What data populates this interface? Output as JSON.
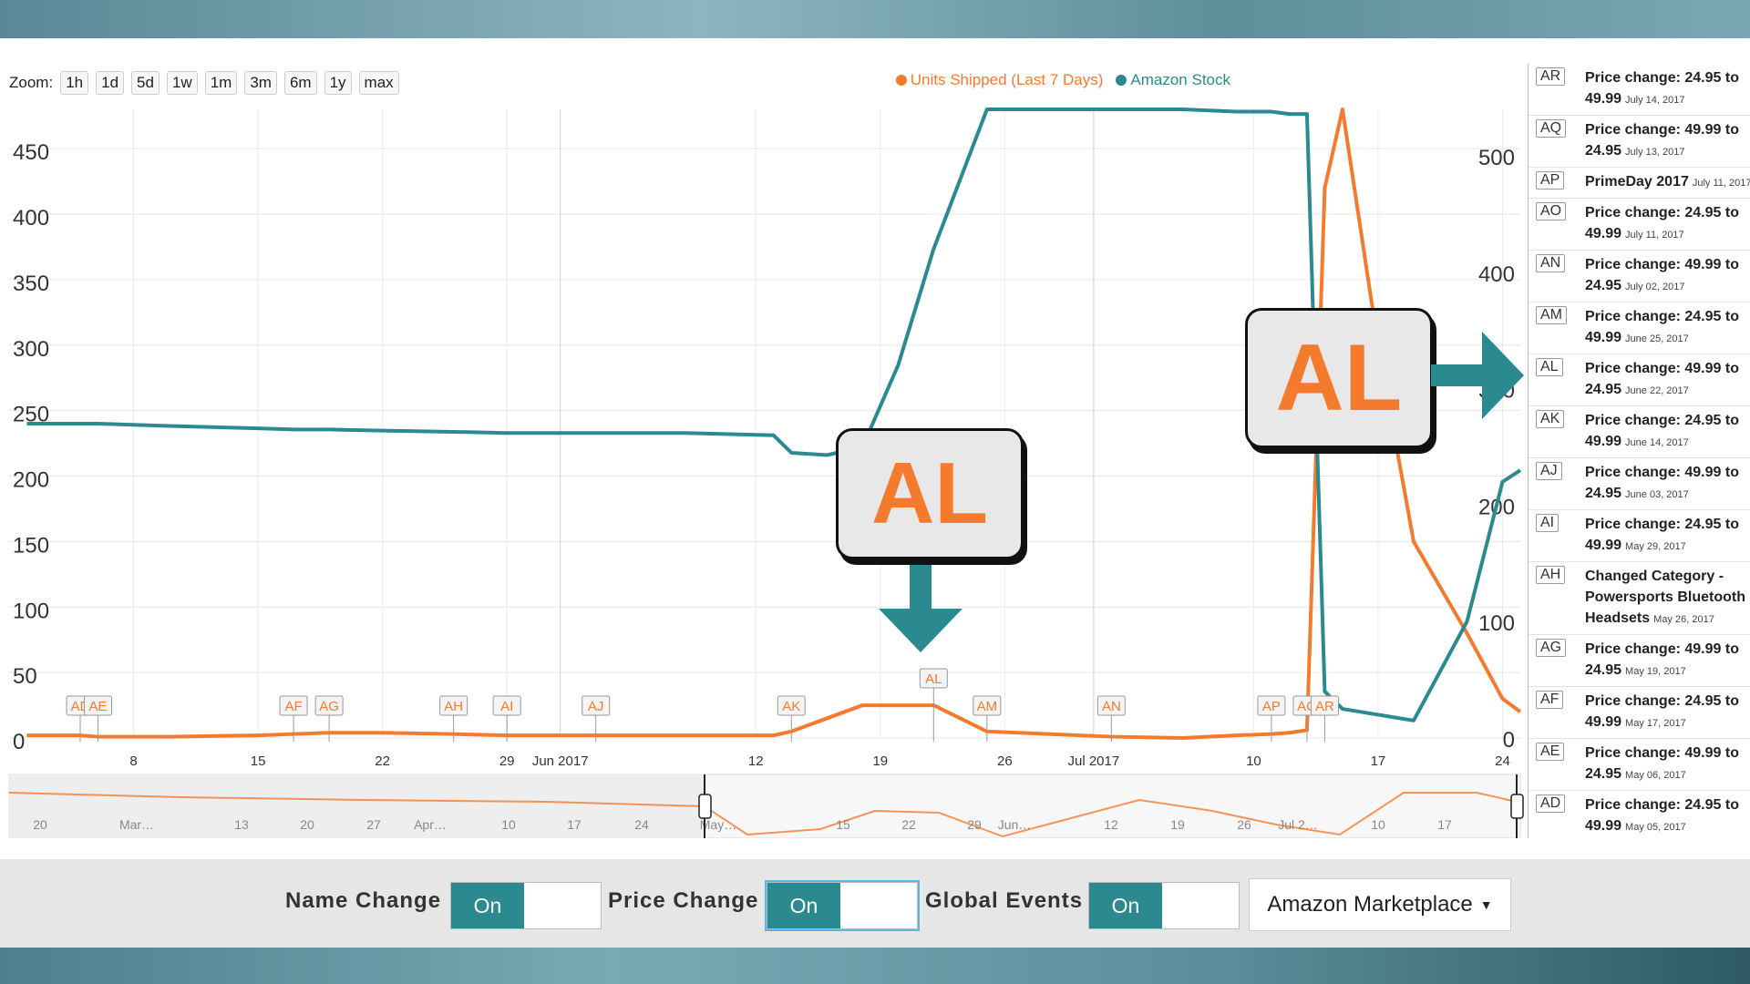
{
  "zoom": {
    "label": "Zoom:",
    "buttons": [
      "1h",
      "1d",
      "5d",
      "1w",
      "1m",
      "3m",
      "6m",
      "1y",
      "max"
    ]
  },
  "legend": [
    {
      "name": "Units Shipped (Last 7 Days)",
      "color": "#f47b2e"
    },
    {
      "name": "Amazon Stock",
      "color": "#2b8a8f"
    }
  ],
  "chart": {
    "left_axis_ticks": [
      "450",
      "400",
      "350",
      "300",
      "250",
      "200",
      "150",
      "100",
      "50",
      "0"
    ],
    "right_axis_ticks": [
      "500",
      "400",
      "300",
      "200",
      "100",
      "0"
    ],
    "x_ticks": [
      "8",
      "15",
      "22",
      "29",
      "Jun 2017",
      "12",
      "19",
      "26",
      "Jul 2017",
      "10",
      "17",
      "24"
    ],
    "markers": [
      "AD",
      "AE",
      "AF",
      "AG",
      "AH",
      "AI",
      "AJ",
      "AK",
      "AL",
      "AM",
      "AN",
      "AP",
      "AQ",
      "AR"
    ],
    "navigator_labels": [
      "20",
      "Mar…",
      "13",
      "20",
      "27",
      "Apr…",
      "10",
      "17",
      "24",
      "May…",
      "15",
      "22",
      "29",
      "Jun…",
      "12",
      "19",
      "26",
      "Jul 2…",
      "10",
      "17"
    ]
  },
  "chart_data": {
    "type": "line",
    "x": [
      "May 02",
      "May 05",
      "May 06",
      "May 10",
      "May 15",
      "May 17",
      "May 19",
      "May 22",
      "May 26",
      "May 29",
      "Jun 03",
      "Jun 08",
      "Jun 13",
      "Jun 14",
      "Jun 16",
      "Jun 18",
      "Jun 20",
      "Jun 22",
      "Jun 25",
      "Jul 02",
      "Jul 06",
      "Jul 09",
      "Jul 11",
      "Jul 12",
      "Jul 13",
      "Jul 14",
      "Jul 15",
      "Jul 17",
      "Jul 19",
      "Jul 22",
      "Jul 24",
      "Jul 25"
    ],
    "series": [
      {
        "name": "Units Shipped (Last 7 Days)",
        "axis": "left",
        "values": [
          2,
          2,
          1,
          1,
          2,
          3,
          4,
          4,
          3,
          2,
          2,
          2,
          2,
          5,
          15,
          25,
          25,
          25,
          5,
          1,
          0,
          2,
          3,
          4,
          6,
          420,
          480,
          300,
          150,
          80,
          30,
          20
        ]
      },
      {
        "name": "Amazon Stock",
        "axis": "right",
        "values": [
          270,
          270,
          270,
          268,
          266,
          265,
          265,
          264,
          263,
          262,
          262,
          262,
          260,
          245,
          243,
          250,
          320,
          420,
          540,
          540,
          540,
          538,
          538,
          536,
          536,
          40,
          25,
          20,
          15,
          100,
          220,
          230
        ]
      }
    ],
    "left_ylim": [
      0,
      480
    ],
    "right_ylim": [
      0,
      540
    ]
  },
  "callouts": [
    {
      "text": "AL"
    },
    {
      "text": "AL"
    }
  ],
  "events": [
    {
      "code": "AR",
      "line1": "Price change: 24.95 to",
      "line2": "49.99",
      "date": "July 14, 2017"
    },
    {
      "code": "AQ",
      "line1": "Price change: 49.99 to",
      "line2": "24.95",
      "date": "July 13, 2017"
    },
    {
      "code": "AP",
      "line1": "PrimeDay 2017",
      "line2": "",
      "date": "July 11, 2017"
    },
    {
      "code": "AO",
      "line1": "Price change: 24.95 to",
      "line2": "49.99",
      "date": "July 11, 2017"
    },
    {
      "code": "AN",
      "line1": "Price change: 49.99 to",
      "line2": "24.95",
      "date": "July 02, 2017"
    },
    {
      "code": "AM",
      "line1": "Price change: 24.95 to",
      "line2": "49.99",
      "date": "June 25, 2017"
    },
    {
      "code": "AL",
      "line1": "Price change: 49.99 to",
      "line2": "24.95",
      "date": "June 22, 2017"
    },
    {
      "code": "AK",
      "line1": "Price change: 24.95 to",
      "line2": "49.99",
      "date": "June 14, 2017"
    },
    {
      "code": "AJ",
      "line1": "Price change: 49.99 to",
      "line2": "24.95",
      "date": "June 03, 2017"
    },
    {
      "code": "AI",
      "line1": "Price change: 24.95 to",
      "line2": "49.99",
      "date": "May 29, 2017"
    },
    {
      "code": "AH",
      "line1": "Changed Category -",
      "line2": "Powersports Bluetooth",
      "line3": "Headsets",
      "date": "May 26, 2017"
    },
    {
      "code": "AG",
      "line1": "Price change: 49.99 to",
      "line2": "24.95",
      "date": "May 19, 2017"
    },
    {
      "code": "AF",
      "line1": "Price change: 24.95 to",
      "line2": "49.99",
      "date": "May 17, 2017"
    },
    {
      "code": "AE",
      "line1": "Price change: 49.99 to",
      "line2": "24.95",
      "date": "May 06, 2017"
    },
    {
      "code": "AD",
      "line1": "Price change: 24.95 to",
      "line2": "49.99",
      "date": "May 05, 2017"
    }
  ],
  "controls": {
    "name_change": {
      "label": "Name Change",
      "state": "On"
    },
    "price_change": {
      "label": "Price Change",
      "state": "On"
    },
    "global_events": {
      "label": "Global Events",
      "state": "On"
    },
    "marketplace": {
      "label": "Amazon Marketplace"
    }
  }
}
